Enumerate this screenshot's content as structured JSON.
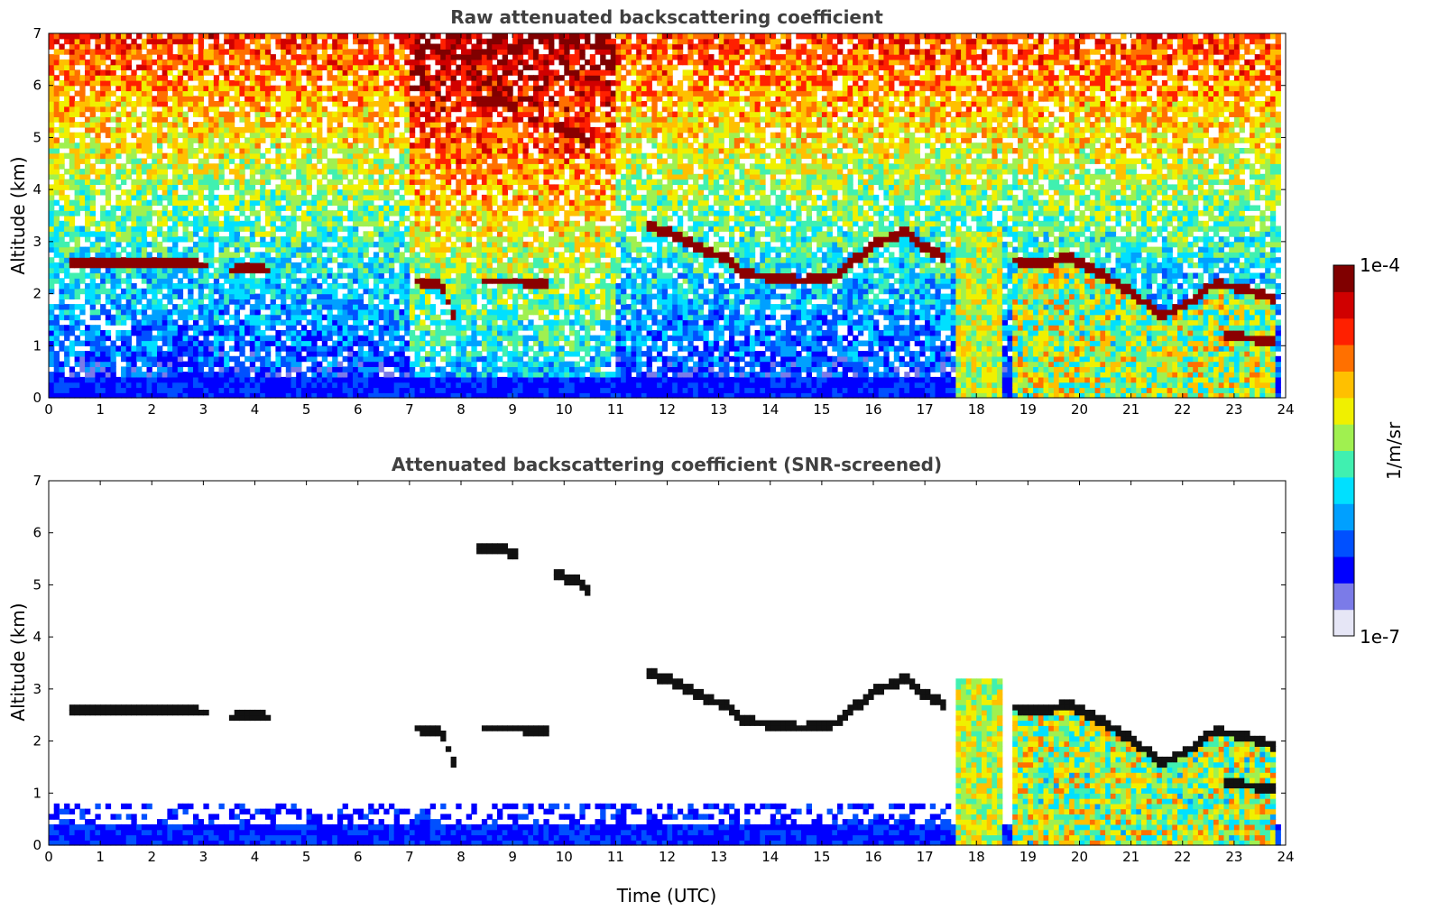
{
  "chart_data": [
    {
      "type": "heatmap",
      "title": "Raw attenuated backscattering coefficient",
      "xlabel": "",
      "ylabel": "Altitude (km)",
      "xlim": [
        0,
        24
      ],
      "ylim": [
        0,
        7
      ],
      "xticks": [
        0,
        1,
        2,
        3,
        4,
        5,
        6,
        7,
        8,
        9,
        10,
        11,
        12,
        13,
        14,
        15,
        16,
        17,
        18,
        19,
        20,
        21,
        22,
        23,
        24
      ],
      "yticks": [
        0,
        1,
        2,
        3,
        4,
        5,
        6,
        7
      ],
      "features": [
        {
          "kind": "cloud_layer",
          "t": [
            0.4,
            1.0,
            1.7,
            2.3,
            3.1
          ],
          "z": [
            2.6,
            2.6,
            2.58,
            2.6,
            2.55
          ]
        },
        {
          "kind": "cloud_layer",
          "t": [
            3.5,
            3.9,
            4.3
          ],
          "z": [
            2.45,
            2.48,
            2.45
          ]
        },
        {
          "kind": "cloud_layer",
          "t": [
            7.1,
            7.6,
            7.9
          ],
          "z": [
            2.25,
            2.2,
            1.5
          ]
        },
        {
          "kind": "cloud_layer",
          "t": [
            8.4,
            9.0,
            9.7
          ],
          "z": [
            2.25,
            2.25,
            2.22
          ]
        },
        {
          "kind": "cloud_layer",
          "t": [
            8.3,
            8.7,
            9.1
          ],
          "z": [
            5.7,
            5.7,
            5.6
          ]
        },
        {
          "kind": "cloud_layer",
          "t": [
            9.8,
            10.2,
            10.5
          ],
          "z": [
            5.2,
            5.1,
            4.9
          ]
        },
        {
          "kind": "cloud_layer",
          "t": [
            11.6,
            12.0,
            12.6,
            13.1,
            13.5,
            14.1,
            14.6,
            15.2,
            15.7,
            16.1,
            16.6,
            17.0,
            17.4
          ],
          "z": [
            3.3,
            3.2,
            2.9,
            2.7,
            2.4,
            2.3,
            2.25,
            2.3,
            2.7,
            3.0,
            3.2,
            2.9,
            2.7
          ]
        },
        {
          "kind": "cloud_layer",
          "t": [
            18.7,
            19.3,
            19.8,
            20.3,
            20.9,
            21.6,
            22.1,
            22.6,
            23.2,
            23.8
          ],
          "z": [
            2.65,
            2.6,
            2.7,
            2.45,
            2.1,
            1.6,
            1.8,
            2.2,
            2.1,
            1.9
          ]
        },
        {
          "kind": "cloud_layer",
          "t": [
            22.8,
            23.3,
            23.8
          ],
          "z": [
            1.2,
            1.15,
            1.1
          ]
        }
      ]
    },
    {
      "type": "heatmap",
      "title": "Attenuated backscattering coefficient (SNR-screened)",
      "xlabel": "Time (UTC)",
      "ylabel": "Altitude (km)",
      "xlim": [
        0,
        24
      ],
      "ylim": [
        0,
        7
      ],
      "xticks": [
        0,
        1,
        2,
        3,
        4,
        5,
        6,
        7,
        8,
        9,
        10,
        11,
        12,
        13,
        14,
        15,
        16,
        17,
        18,
        19,
        20,
        21,
        22,
        23,
        24
      ],
      "yticks": [
        0,
        1,
        2,
        3,
        4,
        5,
        6,
        7
      ]
    }
  ],
  "colorbar": {
    "label": "1/m/sr",
    "min_label": "1e-7",
    "max_label": "1e-4",
    "scale": "log",
    "colors": [
      "#e6e6f6",
      "#7b7be8",
      "#0000ff",
      "#0050ff",
      "#00a0ff",
      "#00e0ff",
      "#40f0b0",
      "#a0f050",
      "#f0f000",
      "#ffc000",
      "#ff7000",
      "#ff2000",
      "#d00000",
      "#800000"
    ]
  }
}
